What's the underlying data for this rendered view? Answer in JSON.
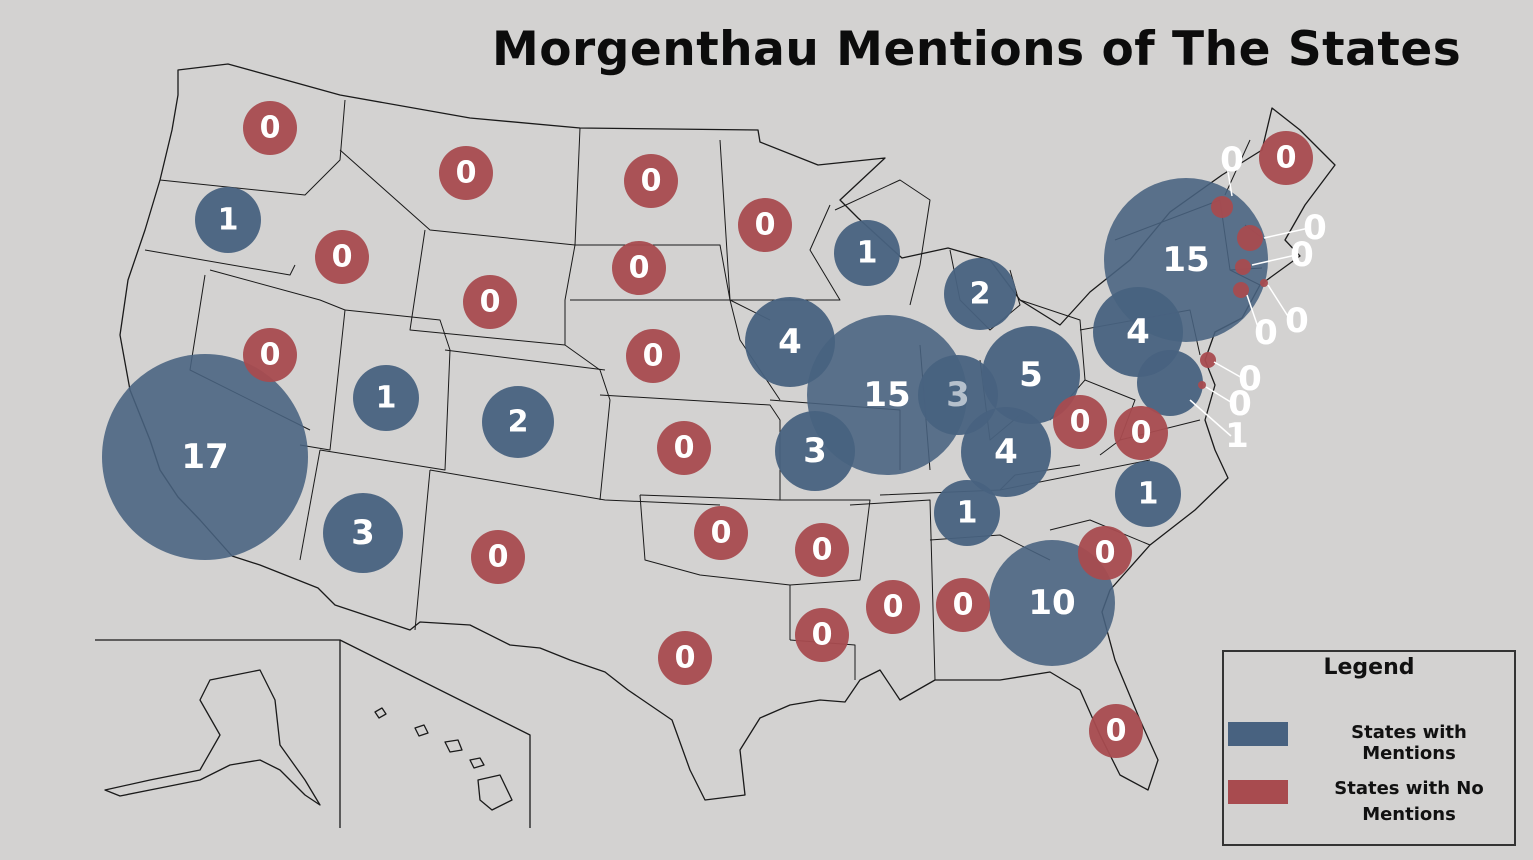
{
  "title": "Morgenthau Mentions of The States",
  "colors": {
    "mentions": "#486280",
    "no_mentions": "#a84b4f",
    "background": "#d3d2d1"
  },
  "legend": {
    "title": "Legend",
    "mentions_label": "States with Mentions",
    "no_mentions_label": "States with No Mentions"
  },
  "states": [
    {
      "name": "Washington",
      "value": 0,
      "label": "0"
    },
    {
      "name": "Oregon",
      "value": 1,
      "label": "1"
    },
    {
      "name": "Idaho",
      "value": 0,
      "label": "0"
    },
    {
      "name": "Montana",
      "value": 0,
      "label": "0"
    },
    {
      "name": "Wyoming",
      "value": 0,
      "label": "0"
    },
    {
      "name": "California",
      "value": 17,
      "label": "17"
    },
    {
      "name": "Nevada",
      "value": 0,
      "label": "0"
    },
    {
      "name": "Utah",
      "value": 1,
      "label": "1"
    },
    {
      "name": "Colorado",
      "value": 2,
      "label": "2"
    },
    {
      "name": "Arizona",
      "value": 3,
      "label": "3"
    },
    {
      "name": "New Mexico",
      "value": 0,
      "label": "0"
    },
    {
      "name": "North Dakota",
      "value": 0,
      "label": "0"
    },
    {
      "name": "South Dakota",
      "value": 0,
      "label": "0"
    },
    {
      "name": "Nebraska",
      "value": 0,
      "label": "0"
    },
    {
      "name": "Kansas",
      "value": 0,
      "label": "0"
    },
    {
      "name": "Oklahoma",
      "value": 0,
      "label": "0"
    },
    {
      "name": "Texas",
      "value": 0,
      "label": "0"
    },
    {
      "name": "Minnesota",
      "value": 0,
      "label": "0"
    },
    {
      "name": "Iowa",
      "value": 4,
      "label": "4"
    },
    {
      "name": "Missouri",
      "value": 3,
      "label": "3"
    },
    {
      "name": "Arkansas",
      "value": 0,
      "label": "0"
    },
    {
      "name": "Louisiana",
      "value": 0,
      "label": "0"
    },
    {
      "name": "Wisconsin",
      "value": 1,
      "label": "1"
    },
    {
      "name": "Illinois",
      "value": 15,
      "label": "15"
    },
    {
      "name": "Indiana",
      "value": 3,
      "label": "3"
    },
    {
      "name": "Michigan",
      "value": 2,
      "label": "2"
    },
    {
      "name": "Ohio",
      "value": 5,
      "label": "5"
    },
    {
      "name": "Kentucky",
      "value": 4,
      "label": "4"
    },
    {
      "name": "Tennessee",
      "value": 1,
      "label": "1"
    },
    {
      "name": "Mississippi",
      "value": 0,
      "label": "0"
    },
    {
      "name": "Alabama",
      "value": 0,
      "label": "0"
    },
    {
      "name": "Georgia",
      "value": 10,
      "label": "10"
    },
    {
      "name": "Florida",
      "value": 0,
      "label": "0"
    },
    {
      "name": "South Carolina",
      "value": 0,
      "label": "0"
    },
    {
      "name": "North Carolina",
      "value": 1,
      "label": "1"
    },
    {
      "name": "Virginia",
      "value": 0,
      "label": "0"
    },
    {
      "name": "West Virginia",
      "value": 0,
      "label": "0"
    },
    {
      "name": "Pennsylvania",
      "value": 4,
      "label": "4"
    },
    {
      "name": "New York",
      "value": 15,
      "label": "15"
    },
    {
      "name": "Maine",
      "value": 0,
      "label": "0"
    },
    {
      "name": "Vermont",
      "value": 0,
      "label": "0"
    },
    {
      "name": "New Hampshire",
      "value": 0,
      "label": "0"
    },
    {
      "name": "Massachusetts",
      "value": 0,
      "label": "0"
    },
    {
      "name": "Rhode Island",
      "value": 0,
      "label": "0"
    },
    {
      "name": "Connecticut",
      "value": 0,
      "label": "0"
    },
    {
      "name": "New Jersey",
      "value": 0,
      "label": "0"
    },
    {
      "name": "Delaware",
      "value": 0,
      "label": "0"
    },
    {
      "name": "Maryland",
      "value": 1,
      "label": "1"
    }
  ]
}
